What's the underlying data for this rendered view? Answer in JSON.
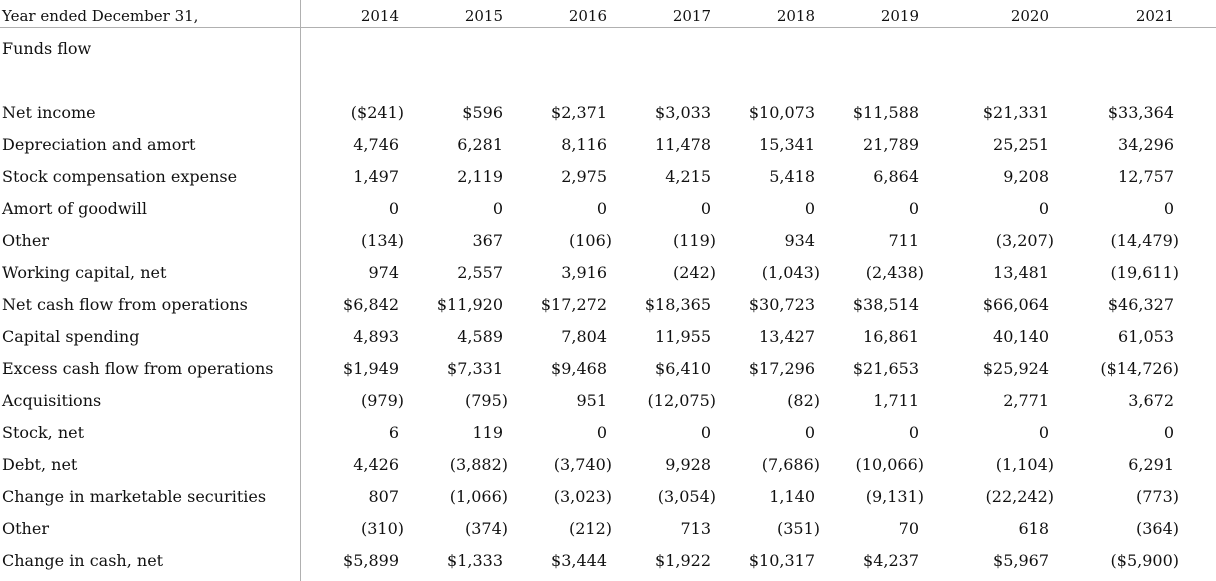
{
  "header": {
    "label": "Year ended December 31,",
    "years": [
      "2014",
      "2015",
      "2016",
      "2017",
      "2018",
      "2019",
      "2020",
      "2021"
    ]
  },
  "section_title": "Funds flow",
  "rows": [
    {
      "label": "Net income",
      "values": [
        "($241)",
        "$596",
        "$2,371",
        "$3,033",
        "$10,073",
        "$11,588",
        "$21,331",
        "$33,364"
      ]
    },
    {
      "label": "Depreciation and amort",
      "values": [
        "4,746",
        "6,281",
        "8,116",
        "11,478",
        "15,341",
        "21,789",
        "25,251",
        "34,296"
      ]
    },
    {
      "label": "Stock compensation expense",
      "values": [
        "1,497",
        "2,119",
        "2,975",
        "4,215",
        "5,418",
        "6,864",
        "9,208",
        "12,757"
      ]
    },
    {
      "label": "Amort of goodwill",
      "values": [
        "0",
        "0",
        "0",
        "0",
        "0",
        "0",
        "0",
        "0"
      ]
    },
    {
      "label": "Other",
      "values": [
        "(134)",
        "367",
        "(106)",
        "(119)",
        "934",
        "711",
        "(3,207)",
        "(14,479)"
      ]
    },
    {
      "label": "Working capital, net",
      "values": [
        "974",
        "2,557",
        "3,916",
        "(242)",
        "(1,043)",
        "(2,438)",
        "13,481",
        "(19,611)"
      ]
    },
    {
      "label": "Net cash flow from operations",
      "values": [
        "$6,842",
        "$11,920",
        "$17,272",
        "$18,365",
        "$30,723",
        "$38,514",
        "$66,064",
        "$46,327"
      ]
    },
    {
      "label": "Capital spending",
      "values": [
        "4,893",
        "4,589",
        "7,804",
        "11,955",
        "13,427",
        "16,861",
        "40,140",
        "61,053"
      ]
    },
    {
      "label": "Excess cash flow from operations",
      "values": [
        "$1,949",
        "$7,331",
        "$9,468",
        "$6,410",
        "$17,296",
        "$21,653",
        "$25,924",
        "($14,726)"
      ]
    },
    {
      "label": "Acquisitions",
      "values": [
        "(979)",
        "(795)",
        "951",
        "(12,075)",
        "(82)",
        "1,711",
        "2,771",
        "3,672"
      ]
    },
    {
      "label": "Stock, net",
      "values": [
        "6",
        "119",
        "0",
        "0",
        "0",
        "0",
        "0",
        "0"
      ]
    },
    {
      "label": "Debt, net",
      "values": [
        "4,426",
        "(3,882)",
        "(3,740)",
        "9,928",
        "(7,686)",
        "(10,066)",
        "(1,104)",
        "6,291"
      ]
    },
    {
      "label": "Change in marketable securities",
      "values": [
        "807",
        "(1,066)",
        "(3,023)",
        "(3,054)",
        "1,140",
        "(9,131)",
        "(22,242)",
        "(773)"
      ]
    },
    {
      "label": "Other",
      "values": [
        "(310)",
        "(374)",
        "(212)",
        "713",
        "(351)",
        "70",
        "618",
        "(364)"
      ]
    },
    {
      "label": "Change in cash, net",
      "values": [
        "$5,899",
        "$1,333",
        "$3,444",
        "$1,922",
        "$10,317",
        "$4,237",
        "$5,967",
        "($5,900)"
      ]
    }
  ]
}
